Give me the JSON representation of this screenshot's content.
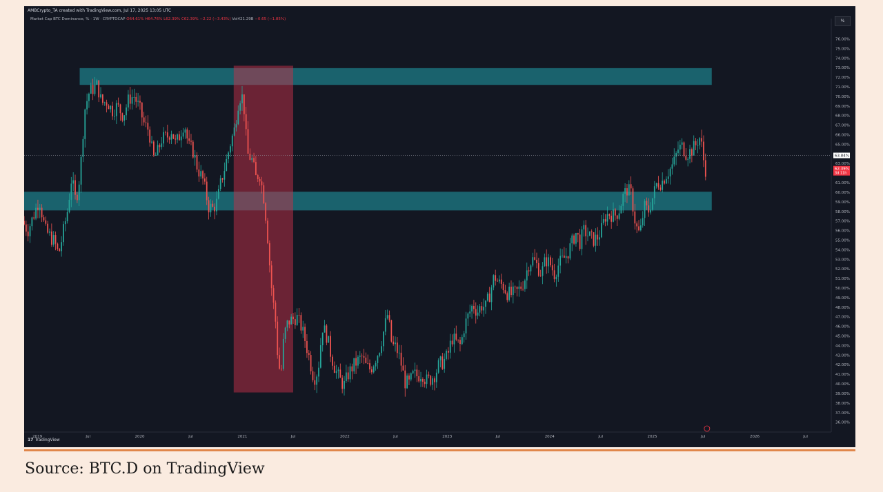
{
  "header": {
    "created_by": "AMBCrypto_TA created with TradingView.com, Jul 17, 2025 13:05 UTC"
  },
  "legend": {
    "symbol": "Market Cap BTC Dominance, % · 1W · CRYPTOCAP",
    "open": "O64.61%",
    "high": "H64.76%",
    "low": "L62.39%",
    "close": "C62.39%",
    "change": "−2.22 (−3.43%)",
    "volume": "Vol421.29B",
    "vol_change": "−0.65 (−1.85%)"
  },
  "percent_button": "%",
  "tv_logo": "TradingView",
  "source": "Source: BTC.D on TradingView",
  "colors": {
    "background": "#131722",
    "up": "#26a69a",
    "down": "#ef5350",
    "zone_cyan": "#1a8a96",
    "zone_red": "#c2304a",
    "accent_rule": "#e0864a"
  },
  "chart_data": {
    "type": "candlestick",
    "title": "Market Cap BTC Dominance, % · 1W · CRYPTOCAP",
    "xlabel": "",
    "ylabel": "",
    "ylim": [
      35.4,
      77.4
    ],
    "xlim": [
      "2018-11-15",
      "2026-10-01"
    ],
    "y_ticks": [
      "36.00%",
      "37.00%",
      "38.00%",
      "39.00%",
      "40.00%",
      "41.00%",
      "42.00%",
      "43.00%",
      "44.00%",
      "45.00%",
      "46.00%",
      "47.00%",
      "48.00%",
      "49.00%",
      "50.00%",
      "51.00%",
      "52.00%",
      "53.00%",
      "54.00%",
      "55.00%",
      "56.00%",
      "57.00%",
      "58.00%",
      "59.00%",
      "60.00%",
      "61.00%",
      "62.00%",
      "63.00%",
      "64.00%",
      "65.00%",
      "66.00%",
      "67.00%",
      "68.00%",
      "69.00%",
      "70.00%",
      "71.00%",
      "72.00%",
      "73.00%",
      "74.00%",
      "75.00%",
      "76.00%"
    ],
    "x_ticks": [
      {
        "label": "2019",
        "date": "2019-01-01"
      },
      {
        "label": "Jul",
        "date": "2019-07-01"
      },
      {
        "label": "2020",
        "date": "2020-01-01"
      },
      {
        "label": "Jul",
        "date": "2020-07-01"
      },
      {
        "label": "2021",
        "date": "2021-01-01"
      },
      {
        "label": "Jul",
        "date": "2021-07-01"
      },
      {
        "label": "2022",
        "date": "2022-01-01"
      },
      {
        "label": "Jul",
        "date": "2022-07-01"
      },
      {
        "label": "2023",
        "date": "2023-01-01"
      },
      {
        "label": "Jul",
        "date": "2023-07-01"
      },
      {
        "label": "2024",
        "date": "2024-01-01"
      },
      {
        "label": "Jul",
        "date": "2024-07-01"
      },
      {
        "label": "2025",
        "date": "2025-01-01"
      },
      {
        "label": "Jul",
        "date": "2025-07-01"
      },
      {
        "label": "2026",
        "date": "2026-01-01"
      },
      {
        "label": "Jul",
        "date": "2026-07-01"
      }
    ],
    "grid": false,
    "current_price_line": {
      "value": 63.84,
      "label": "63.84%"
    },
    "last_price_label": {
      "value": 62.39,
      "label": "62.39%",
      "countdown": "3d 11h"
    },
    "zones": [
      {
        "kind": "resistance",
        "color": "cyan",
        "x_start": "2019-06-01",
        "x_end": "2025-08-01",
        "y_low": 71.2,
        "y_high": 72.95
      },
      {
        "kind": "support",
        "color": "cyan",
        "x_start": "2018-11-15",
        "x_end": "2025-08-01",
        "y_low": 58.1,
        "y_high": 60.05
      },
      {
        "kind": "drawdown",
        "color": "red",
        "x_start": "2020-12-01",
        "x_end": "2021-07-01",
        "y_low": 39.1,
        "y_high": 73.2
      }
    ],
    "path_points": [
      [
        "2018-11-15",
        57.0
      ],
      [
        "2018-12-05",
        56.0
      ],
      [
        "2018-12-25",
        57.5
      ],
      [
        "2019-01-15",
        59.3
      ],
      [
        "2019-02-05",
        56.0
      ],
      [
        "2019-02-20",
        55.5
      ],
      [
        "2019-03-10",
        54.8
      ],
      [
        "2019-03-25",
        53.5
      ],
      [
        "2019-04-10",
        55.8
      ],
      [
        "2019-04-25",
        58.0
      ],
      [
        "2019-05-10",
        61.5
      ],
      [
        "2019-05-25",
        59.0
      ],
      [
        "2019-06-10",
        62.0
      ],
      [
        "2019-06-25",
        68.5
      ],
      [
        "2019-07-10",
        70.3
      ],
      [
        "2019-07-25",
        70.8
      ],
      [
        "2019-08-10",
        71.2
      ],
      [
        "2019-08-25",
        69.3
      ],
      [
        "2019-09-15",
        69.5
      ],
      [
        "2019-10-01",
        68.5
      ],
      [
        "2019-10-20",
        69.0
      ],
      [
        "2019-11-10",
        68.0
      ],
      [
        "2019-12-01",
        69.8
      ],
      [
        "2019-12-20",
        70.0
      ],
      [
        "2020-01-10",
        68.5
      ],
      [
        "2020-01-25",
        67.0
      ],
      [
        "2020-02-10",
        66.5
      ],
      [
        "2020-02-25",
        63.5
      ],
      [
        "2020-03-10",
        64.0
      ],
      [
        "2020-03-25",
        65.5
      ],
      [
        "2020-04-15",
        65.8
      ],
      [
        "2020-05-01",
        66.5
      ],
      [
        "2020-05-15",
        65.0
      ],
      [
        "2020-05-30",
        66.0
      ],
      [
        "2020-06-15",
        67.3
      ],
      [
        "2020-06-30",
        64.8
      ],
      [
        "2020-07-15",
        64.4
      ],
      [
        "2020-08-01",
        62.5
      ],
      [
        "2020-08-20",
        61.3
      ],
      [
        "2020-09-10",
        58.5
      ],
      [
        "2020-09-25",
        58.3
      ],
      [
        "2020-10-10",
        59.0
      ],
      [
        "2020-10-25",
        61.3
      ],
      [
        "2020-11-10",
        63.0
      ],
      [
        "2020-11-25",
        65.0
      ],
      [
        "2020-12-10",
        66.5
      ],
      [
        "2020-12-25",
        69.5
      ],
      [
        "2021-01-05",
        70.3
      ],
      [
        "2021-01-15",
        68.5
      ],
      [
        "2021-01-25",
        64.0
      ],
      [
        "2021-02-10",
        63.5
      ],
      [
        "2021-02-25",
        61.5
      ],
      [
        "2021-03-10",
        62.0
      ],
      [
        "2021-03-25",
        59.5
      ],
      [
        "2021-04-05",
        56.5
      ],
      [
        "2021-04-15",
        52.5
      ],
      [
        "2021-04-25",
        49.0
      ],
      [
        "2021-05-05",
        47.0
      ],
      [
        "2021-05-15",
        42.5
      ],
      [
        "2021-05-25",
        40.8
      ],
      [
        "2021-06-05",
        45.0
      ],
      [
        "2021-06-20",
        46.5
      ],
      [
        "2021-07-05",
        46.7
      ],
      [
        "2021-07-20",
        47.0
      ],
      [
        "2021-08-05",
        46.0
      ],
      [
        "2021-08-20",
        44.5
      ],
      [
        "2021-09-05",
        42.5
      ],
      [
        "2021-09-20",
        40.5
      ],
      [
        "2021-10-05",
        41.5
      ],
      [
        "2021-10-20",
        46.0
      ],
      [
        "2021-11-05",
        45.0
      ],
      [
        "2021-11-20",
        43.0
      ],
      [
        "2021-12-05",
        41.5
      ],
      [
        "2021-12-20",
        40.5
      ],
      [
        "2022-01-05",
        39.8
      ],
      [
        "2022-01-20",
        41.0
      ],
      [
        "2022-02-05",
        41.8
      ],
      [
        "2022-02-20",
        42.3
      ],
      [
        "2022-03-10",
        42.8
      ],
      [
        "2022-03-25",
        41.8
      ],
      [
        "2022-04-10",
        41.5
      ],
      [
        "2022-04-25",
        42.5
      ],
      [
        "2022-05-10",
        43.5
      ],
      [
        "2022-05-25",
        45.3
      ],
      [
        "2022-06-10",
        47.3
      ],
      [
        "2022-06-25",
        44.0
      ],
      [
        "2022-07-10",
        43.8
      ],
      [
        "2022-07-25",
        42.5
      ],
      [
        "2022-08-10",
        40.2
      ],
      [
        "2022-08-25",
        40.0
      ],
      [
        "2022-09-10",
        41.0
      ],
      [
        "2022-09-25",
        40.8
      ],
      [
        "2022-10-10",
        41.2
      ],
      [
        "2022-10-25",
        40.3
      ],
      [
        "2022-11-10",
        40.5
      ],
      [
        "2022-11-25",
        41.0
      ],
      [
        "2022-12-10",
        42.0
      ],
      [
        "2022-12-25",
        42.3
      ],
      [
        "2023-01-10",
        43.0
      ],
      [
        "2023-01-25",
        44.8
      ],
      [
        "2023-02-10",
        44.3
      ],
      [
        "2023-02-25",
        44.0
      ],
      [
        "2023-03-10",
        46.0
      ],
      [
        "2023-03-25",
        47.2
      ],
      [
        "2023-04-10",
        48.3
      ],
      [
        "2023-04-25",
        47.5
      ],
      [
        "2023-05-10",
        48.2
      ],
      [
        "2023-05-25",
        48.0
      ],
      [
        "2023-06-10",
        49.5
      ],
      [
        "2023-06-25",
        51.3
      ],
      [
        "2023-07-10",
        50.5
      ],
      [
        "2023-07-25",
        50.3
      ],
      [
        "2023-08-10",
        49.5
      ],
      [
        "2023-08-25",
        49.3
      ],
      [
        "2023-09-10",
        49.5
      ],
      [
        "2023-09-25",
        50.0
      ],
      [
        "2023-10-10",
        50.8
      ],
      [
        "2023-10-25",
        52.5
      ],
      [
        "2023-11-10",
        53.0
      ],
      [
        "2023-11-25",
        52.3
      ],
      [
        "2023-12-10",
        51.5
      ],
      [
        "2023-12-25",
        53.0
      ],
      [
        "2024-01-10",
        52.5
      ],
      [
        "2024-01-25",
        51.5
      ],
      [
        "2024-02-10",
        52.5
      ],
      [
        "2024-02-25",
        53.0
      ],
      [
        "2024-03-10",
        53.5
      ],
      [
        "2024-03-25",
        54.5
      ],
      [
        "2024-04-10",
        55.8
      ],
      [
        "2024-04-25",
        54.8
      ],
      [
        "2024-05-10",
        56.0
      ],
      [
        "2024-05-25",
        55.5
      ],
      [
        "2024-06-10",
        55.0
      ],
      [
        "2024-06-25",
        55.2
      ],
      [
        "2024-07-10",
        56.0
      ],
      [
        "2024-07-25",
        57.5
      ],
      [
        "2024-08-10",
        57.8
      ],
      [
        "2024-08-25",
        57.5
      ],
      [
        "2024-09-10",
        58.0
      ],
      [
        "2024-09-25",
        59.5
      ],
      [
        "2024-10-10",
        60.3
      ],
      [
        "2024-10-25",
        59.8
      ],
      [
        "2024-11-10",
        56.5
      ],
      [
        "2024-11-25",
        55.5
      ],
      [
        "2024-12-10",
        58.5
      ],
      [
        "2024-12-25",
        58.0
      ],
      [
        "2025-01-10",
        59.5
      ],
      [
        "2025-01-25",
        61.0
      ],
      [
        "2025-02-10",
        61.0
      ],
      [
        "2025-02-25",
        61.8
      ],
      [
        "2025-03-10",
        62.3
      ],
      [
        "2025-03-25",
        63.0
      ],
      [
        "2025-04-10",
        64.5
      ],
      [
        "2025-04-25",
        64.8
      ],
      [
        "2025-05-10",
        64.0
      ],
      [
        "2025-05-25",
        64.3
      ],
      [
        "2025-06-10",
        64.8
      ],
      [
        "2025-06-25",
        65.8
      ],
      [
        "2025-07-05",
        64.6
      ],
      [
        "2025-07-14",
        62.39
      ]
    ]
  }
}
